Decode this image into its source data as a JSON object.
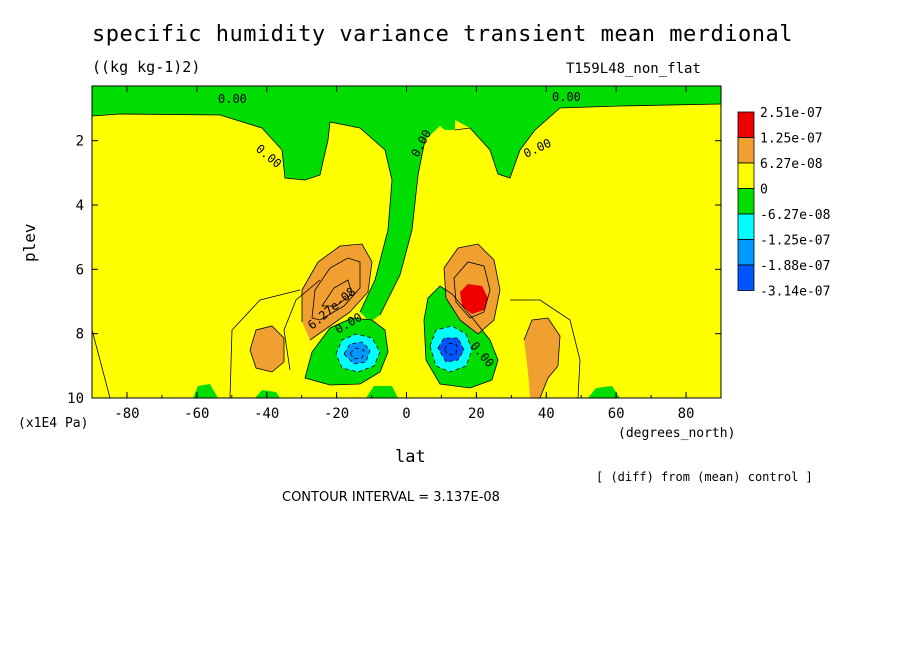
{
  "chart_data": {
    "type": "heatmap",
    "title": "specific humidity variance transient mean merdional",
    "units_label": "((kg kg-1)2)",
    "run_label": "T159L48_non_flat",
    "xlabel": "lat",
    "x_units": "(degrees_north)",
    "ylabel": "plev",
    "y_units": "(x1E4 Pa)",
    "xlim": [
      -90,
      90
    ],
    "ylim": [
      10,
      0.3
    ],
    "x_ticks": [
      "-80",
      "-60",
      "-40",
      "-20",
      "0",
      "20",
      "40",
      "60",
      "80"
    ],
    "y_ticks": [
      "2",
      "4",
      "6",
      "8",
      "10"
    ],
    "legend_position": "right",
    "legend": [
      {
        "label": "2.51e-07",
        "color": "#ee0000"
      },
      {
        "label": "1.25e-07",
        "color": "#f0a030"
      },
      {
        "label": "6.27e-08",
        "color": "#ffff00"
      },
      {
        "label": "0",
        "color": "#00dd00"
      },
      {
        "label": "-6.27e-08",
        "color": "#00ffff"
      },
      {
        "label": "-1.25e-07",
        "color": "#0099ff"
      },
      {
        "label": "-1.88e-07",
        "color": "#0055ff"
      },
      {
        "label": "-3.14e-07",
        "color": ""
      }
    ],
    "contour_labels": [
      "0.00",
      "0.00",
      "0.00",
      "0.00",
      "0.00",
      "0.00",
      "0.00",
      "6.27e-08"
    ],
    "contour_interval_text": "CONTOUR INTERVAL = 3.137E-08",
    "note": "[ (diff) from (mean) control ]"
  }
}
